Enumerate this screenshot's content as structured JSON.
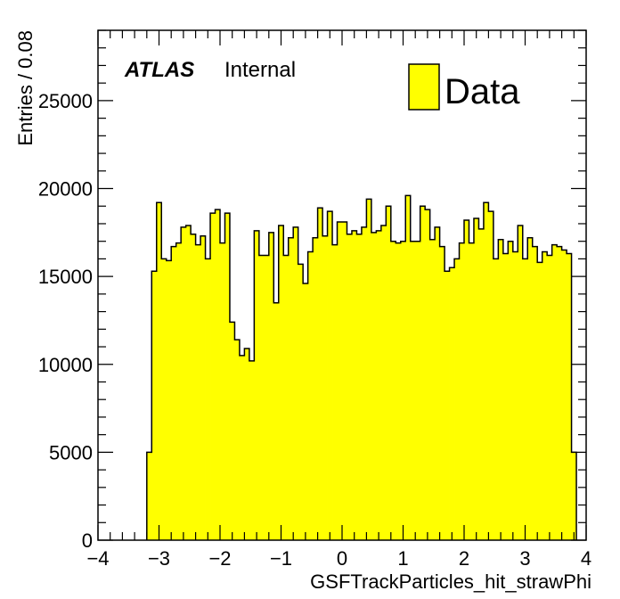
{
  "chart_data": {
    "type": "bar",
    "style": "histogram",
    "xlabel": "GSFTrackParticles_hit_strawPhi",
    "ylabel": "Entries / 0.08",
    "xlim": [
      -4,
      4
    ],
    "ylim": [
      0,
      29000
    ],
    "xticks": [
      -4,
      -3,
      -2,
      -1,
      0,
      1,
      2,
      3,
      4
    ],
    "xtick_labels": [
      "−4",
      "−3",
      "−2",
      "−1",
      "0",
      "1",
      "2",
      "3",
      "4"
    ],
    "yticks": [
      0,
      5000,
      10000,
      15000,
      20000,
      25000
    ],
    "ytick_labels": [
      "0",
      "5000",
      "10000",
      "15000",
      "20000",
      "25000"
    ],
    "bin_width": 0.08,
    "bin_start": -3.2,
    "values": [
      5000,
      15300,
      19200,
      16000,
      15900,
      16700,
      16900,
      17800,
      17900,
      17400,
      16800,
      17300,
      16000,
      18600,
      18800,
      16900,
      18600,
      12400,
      11400,
      10500,
      10900,
      10200,
      17600,
      16200,
      16200,
      17500,
      13500,
      17900,
      16200,
      17200,
      17800,
      15700,
      14600,
      16400,
      17200,
      18900,
      17300,
      18700,
      16800,
      18100,
      18100,
      17400,
      17600,
      17400,
      17800,
      19400,
      17500,
      17600,
      17900,
      19000,
      17000,
      16900,
      17000,
      19600,
      17000,
      17000,
      19000,
      18800,
      17100,
      17800,
      16700,
      15300,
      15500,
      16000,
      16900,
      18200,
      16900,
      18300,
      17700,
      19200,
      18700,
      16000,
      17100,
      16300,
      17000,
      16400,
      17900,
      16000,
      17200,
      16700,
      15800,
      16400,
      16200,
      16800,
      16700,
      16500,
      16300,
      5000
    ],
    "fill_color": "#ffff00",
    "line_color": "#000000",
    "legend": {
      "entries": [
        "Data"
      ],
      "placement": "top-right"
    },
    "annotations": {
      "atlas": "ATLAS",
      "label": "Internal"
    },
    "grid": false
  }
}
